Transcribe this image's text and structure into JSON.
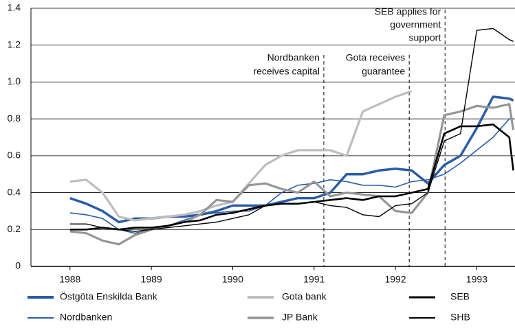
{
  "chart_data": {
    "type": "line",
    "x": [
      1988,
      1988.2,
      1988.4,
      1988.6,
      1988.8,
      1989,
      1989.2,
      1989.4,
      1989.6,
      1989.8,
      1990,
      1990.2,
      1990.4,
      1990.6,
      1990.8,
      1991,
      1991.2,
      1991.4,
      1991.6,
      1991.8,
      1992,
      1992.2,
      1992.4,
      1992.6,
      1992.8,
      1993,
      1993.2,
      1993.4,
      1993.45
    ],
    "series": [
      {
        "name": "Östgöta Enskilda Bank",
        "color": "#2b5ca8",
        "values": [
          0.37,
          0.34,
          0.3,
          0.24,
          0.26,
          0.26,
          0.27,
          0.27,
          0.28,
          0.3,
          0.33,
          0.33,
          0.33,
          0.35,
          0.37,
          0.37,
          0.4,
          0.5,
          0.5,
          0.52,
          0.53,
          0.52,
          0.45,
          0.55,
          0.6,
          0.75,
          0.92,
          0.91,
          0.9
        ]
      },
      {
        "name": "Nordbanken",
        "color": "#2b5ca8",
        "values": [
          0.29,
          0.28,
          0.26,
          0.2,
          0.18,
          0.2,
          0.22,
          0.25,
          0.28,
          0.29,
          0.3,
          0.3,
          0.33,
          0.4,
          0.44,
          0.45,
          0.47,
          0.46,
          0.44,
          0.44,
          0.43,
          0.46,
          0.47,
          0.5,
          0.56,
          0.63,
          0.7,
          0.8,
          0.8
        ]
      },
      {
        "name": "Gota bank",
        "color": "#bdbdbd",
        "values": [
          0.46,
          0.47,
          0.4,
          0.27,
          0.25,
          0.26,
          0.27,
          0.28,
          0.3,
          0.33,
          0.35,
          0.45,
          0.55,
          0.6,
          0.63,
          0.63,
          0.63,
          0.6,
          0.84,
          0.88,
          0.92,
          0.95,
          null,
          null,
          null,
          null,
          null,
          null,
          null
        ]
      },
      {
        "name": "JP Bank",
        "color": "#969696",
        "values": [
          0.19,
          0.18,
          0.14,
          0.12,
          0.17,
          0.2,
          0.22,
          0.24,
          0.28,
          0.36,
          0.35,
          0.44,
          0.45,
          0.42,
          0.4,
          0.46,
          0.38,
          0.4,
          0.39,
          0.38,
          0.3,
          0.29,
          0.4,
          0.82,
          0.84,
          0.87,
          0.86,
          0.88,
          0.74
        ]
      },
      {
        "name": "SEB",
        "color": "#000000",
        "values": [
          0.2,
          0.2,
          0.21,
          0.2,
          0.21,
          0.21,
          0.22,
          0.24,
          0.25,
          0.28,
          0.29,
          0.31,
          0.33,
          0.34,
          0.34,
          0.35,
          0.36,
          0.37,
          0.36,
          0.38,
          0.38,
          0.4,
          0.42,
          0.72,
          0.76,
          0.76,
          0.77,
          0.7,
          0.52
        ]
      },
      {
        "name": "SHB",
        "color": "#000000",
        "values": [
          0.23,
          0.23,
          0.21,
          0.2,
          0.19,
          0.2,
          0.21,
          0.22,
          0.23,
          0.24,
          0.26,
          0.28,
          0.33,
          0.34,
          0.34,
          0.35,
          0.33,
          0.32,
          0.28,
          0.27,
          0.33,
          0.34,
          0.4,
          0.68,
          0.72,
          1.28,
          1.29,
          1.23,
          1.22
        ]
      }
    ],
    "events": [
      {
        "x": 1991.12,
        "lines": [
          "Nordbanken",
          "receives capital"
        ]
      },
      {
        "x": 1992.17,
        "lines": [
          "Gota receives",
          "guarantee"
        ]
      },
      {
        "x": 1992.61,
        "lines": [
          "SEB applies for",
          "government",
          "support"
        ]
      }
    ],
    "xlim": [
      1987.52,
      1993.47
    ],
    "xticks": [
      1988,
      1989,
      1990,
      1991,
      1992,
      1993
    ],
    "ylim": [
      0,
      1.4
    ],
    "yticks": [
      0,
      0.2,
      0.4,
      0.6,
      0.8,
      {
        "value": 1,
        "label": "1.0"
      },
      1.2,
      1.4
    ],
    "grid": true
  }
}
